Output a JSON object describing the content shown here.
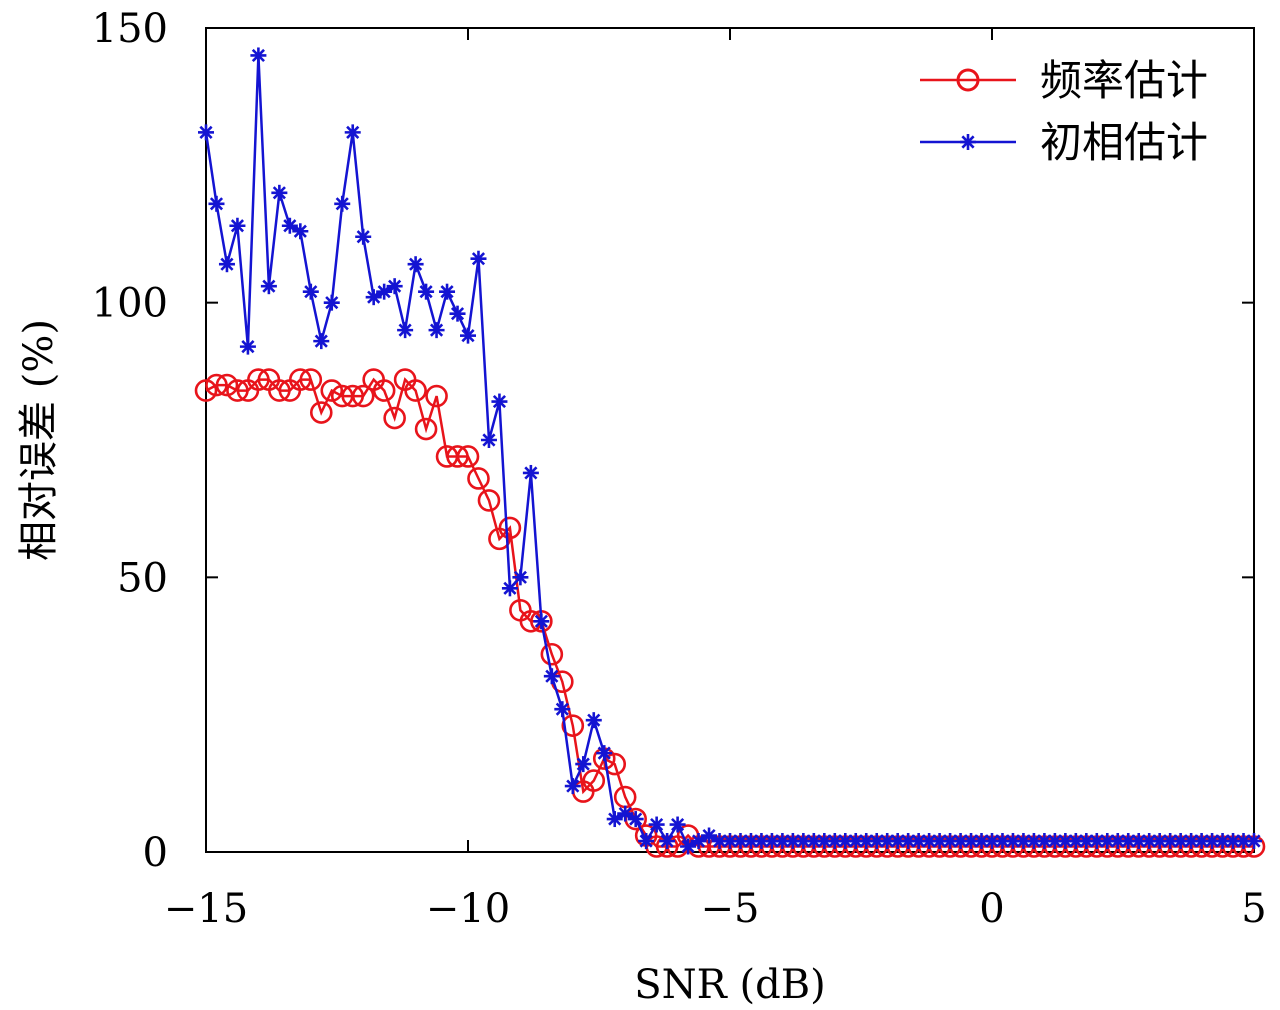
{
  "chart_data": {
    "type": "line",
    "title": "",
    "xlabel": "SNR (dB)",
    "ylabel": "相对误差 (%)",
    "xlim": [
      -15,
      5
    ],
    "ylim": [
      0,
      150
    ],
    "xticks": [
      -15,
      -10,
      -5,
      0,
      5
    ],
    "xtick_labels": [
      "−15",
      "−10",
      "−5",
      "0",
      "5"
    ],
    "yticks": [
      0,
      50,
      100,
      150
    ],
    "ytick_labels": [
      "0",
      "50",
      "100",
      "150"
    ],
    "grid": false,
    "legend_position": "top-right",
    "x": [
      -15.0,
      -14.8,
      -14.6,
      -14.4,
      -14.2,
      -14.0,
      -13.8,
      -13.6,
      -13.4,
      -13.2,
      -13.0,
      -12.8,
      -12.6,
      -12.4,
      -12.2,
      -12.0,
      -11.8,
      -11.6,
      -11.4,
      -11.2,
      -11.0,
      -10.8,
      -10.6,
      -10.4,
      -10.2,
      -10.0,
      -9.8,
      -9.6,
      -9.4,
      -9.2,
      -9.0,
      -8.8,
      -8.6,
      -8.4,
      -8.2,
      -8.0,
      -7.8,
      -7.6,
      -7.4,
      -7.2,
      -7.0,
      -6.8,
      -6.6,
      -6.4,
      -6.2,
      -6.0,
      -5.8,
      -5.6,
      -5.4,
      -5.2,
      -5.0,
      -4.8,
      -4.6,
      -4.4,
      -4.2,
      -4.0,
      -3.8,
      -3.6,
      -3.4,
      -3.2,
      -3.0,
      -2.8,
      -2.6,
      -2.4,
      -2.2,
      -2.0,
      -1.8,
      -1.6,
      -1.4,
      -1.2,
      -1.0,
      -0.8,
      -0.6,
      -0.4,
      -0.2,
      0.0,
      0.2,
      0.4,
      0.6,
      0.8,
      1.0,
      1.2,
      1.4,
      1.6,
      1.8,
      2.0,
      2.2,
      2.4,
      2.6,
      2.8,
      3.0,
      3.2,
      3.4,
      3.6,
      3.8,
      4.0,
      4.2,
      4.4,
      4.6,
      4.8,
      5.0
    ],
    "series": [
      {
        "name": "频率估计",
        "color": "#e8141b",
        "marker": "circle",
        "values": [
          84,
          85,
          85,
          84,
          84,
          86,
          86,
          84,
          84,
          86,
          86,
          80,
          84,
          83,
          83,
          83,
          86,
          84,
          79,
          86,
          84,
          77,
          83,
          72,
          72,
          72,
          68,
          64,
          57,
          59,
          44,
          42,
          42,
          36,
          31,
          23,
          11,
          13,
          17,
          16,
          10,
          6,
          3,
          1,
          1,
          1,
          3,
          1,
          1,
          1,
          1,
          1,
          1,
          1,
          1,
          1,
          1,
          1,
          1,
          1,
          1,
          1,
          1,
          1,
          1,
          1,
          1,
          1,
          1,
          1,
          1,
          1,
          1,
          1,
          1,
          1,
          1,
          1,
          1,
          1,
          1,
          1,
          1,
          1,
          1,
          1,
          1,
          1,
          1,
          1,
          1,
          1,
          1,
          1,
          1,
          1,
          1,
          1,
          1,
          1,
          1
        ]
      },
      {
        "name": "初相估计",
        "color": "#1414d2",
        "marker": "asterisk",
        "values": [
          131,
          118,
          107,
          114,
          92,
          145,
          103,
          120,
          114,
          113,
          102,
          93,
          100,
          118,
          131,
          112,
          101,
          102,
          103,
          95,
          107,
          102,
          95,
          102,
          98,
          94,
          108,
          75,
          82,
          48,
          50,
          69,
          42,
          32,
          26,
          12,
          16,
          24,
          18,
          6,
          7,
          6,
          2,
          5,
          2,
          5,
          1,
          2,
          3,
          2,
          2,
          2,
          2,
          2,
          2,
          2,
          2,
          2,
          2,
          2,
          2,
          2,
          2,
          2,
          2,
          2,
          2,
          2,
          2,
          2,
          2,
          2,
          2,
          2,
          2,
          2,
          2,
          2,
          2,
          2,
          2,
          2,
          2,
          2,
          2,
          2,
          2,
          2,
          2,
          2,
          2,
          2,
          2,
          2,
          2,
          2,
          2,
          2,
          2,
          2,
          2
        ]
      }
    ]
  }
}
